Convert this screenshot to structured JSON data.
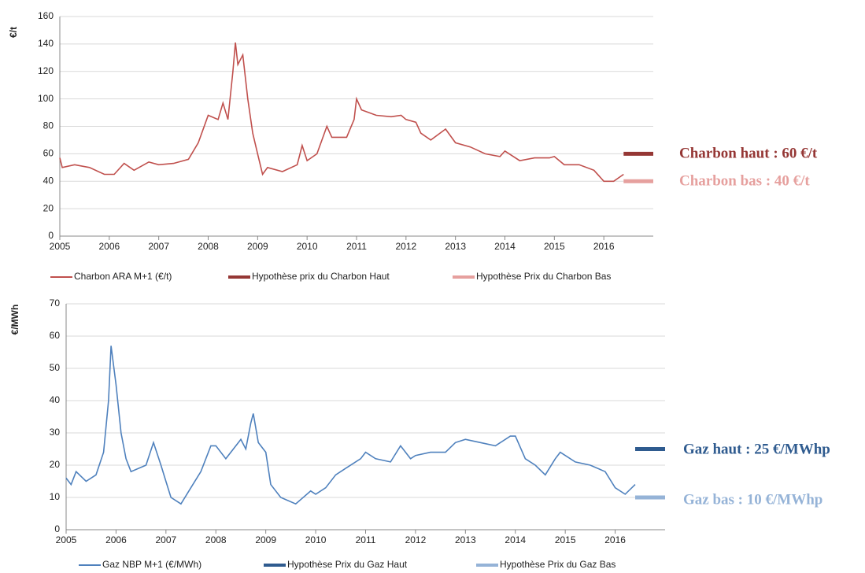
{
  "chart_data": [
    {
      "type": "line",
      "ylabel": "€/t",
      "xlim": [
        2005,
        2017
      ],
      "xticks": [
        2005,
        2006,
        2007,
        2008,
        2009,
        2010,
        2011,
        2012,
        2013,
        2014,
        2015,
        2016
      ],
      "ylim": [
        0,
        160
      ],
      "yticks": [
        0,
        20,
        40,
        60,
        80,
        100,
        120,
        140,
        160
      ],
      "grid": true,
      "series": [
        {
          "name": "Charbon ARA M+1 (€/t)",
          "color": "#c0504d",
          "x": [
            2005.0,
            2005.05,
            2005.3,
            2005.6,
            2005.9,
            2006.1,
            2006.3,
            2006.5,
            2006.8,
            2007.0,
            2007.3,
            2007.6,
            2007.8,
            2008.0,
            2008.2,
            2008.3,
            2008.4,
            2008.5,
            2008.55,
            2008.6,
            2008.7,
            2008.8,
            2008.9,
            2009.0,
            2009.1,
            2009.2,
            2009.5,
            2009.8,
            2009.9,
            2010.0,
            2010.2,
            2010.4,
            2010.5,
            2010.8,
            2010.95,
            2011.0,
            2011.1,
            2011.4,
            2011.7,
            2011.9,
            2012.0,
            2012.2,
            2012.3,
            2012.5,
            2012.8,
            2013.0,
            2013.3,
            2013.6,
            2013.9,
            2014.0,
            2014.3,
            2014.6,
            2014.9,
            2015.0,
            2015.2,
            2015.5,
            2015.8,
            2016.0,
            2016.2,
            2016.4
          ],
          "values": [
            57,
            50,
            52,
            50,
            45,
            45,
            53,
            48,
            54,
            52,
            53,
            56,
            68,
            88,
            85,
            97,
            85,
            120,
            141,
            125,
            132,
            100,
            75,
            60,
            45,
            50,
            47,
            52,
            66,
            55,
            60,
            80,
            72,
            72,
            85,
            100,
            92,
            88,
            87,
            88,
            85,
            83,
            75,
            70,
            78,
            68,
            65,
            60,
            58,
            62,
            55,
            57,
            57,
            58,
            52,
            52,
            48,
            40,
            40,
            45
          ]
        },
        {
          "name": "Hypothèse prix du Charbon Haut",
          "color": "#953735",
          "x": [
            2016.4,
            2017
          ],
          "values": [
            60,
            60
          ]
        },
        {
          "name": "Hypothèse Prix du Charbon Bas",
          "color": "#e6a09e",
          "x": [
            2016.4,
            2017
          ],
          "values": [
            40,
            40
          ]
        }
      ],
      "annotations": [
        {
          "text": "Charbon haut : 60 €/t",
          "color": "#953735"
        },
        {
          "text": "Charbon bas : 40 €/t",
          "color": "#e6a09e"
        }
      ]
    },
    {
      "type": "line",
      "ylabel": "€/MWh",
      "xlim": [
        2005,
        2017
      ],
      "xticks": [
        2005,
        2006,
        2007,
        2008,
        2009,
        2010,
        2011,
        2012,
        2013,
        2014,
        2015,
        2016
      ],
      "ylim": [
        0,
        70
      ],
      "yticks": [
        0,
        10,
        20,
        30,
        40,
        50,
        60,
        70
      ],
      "grid": true,
      "series": [
        {
          "name": "Gaz NBP M+1 (€/MWh)",
          "color": "#4f81bd",
          "x": [
            2005.0,
            2005.1,
            2005.2,
            2005.4,
            2005.6,
            2005.75,
            2005.85,
            2005.9,
            2006.0,
            2006.1,
            2006.2,
            2006.3,
            2006.6,
            2006.75,
            2006.9,
            2007.0,
            2007.1,
            2007.3,
            2007.5,
            2007.7,
            2007.9,
            2008.0,
            2008.2,
            2008.5,
            2008.6,
            2008.7,
            2008.75,
            2008.85,
            2009.0,
            2009.1,
            2009.3,
            2009.6,
            2009.9,
            2010.0,
            2010.2,
            2010.4,
            2010.6,
            2010.9,
            2011.0,
            2011.2,
            2011.5,
            2011.7,
            2011.9,
            2012.0,
            2012.3,
            2012.6,
            2012.8,
            2013.0,
            2013.3,
            2013.6,
            2013.9,
            2014.0,
            2014.2,
            2014.4,
            2014.6,
            2014.8,
            2014.9,
            2015.0,
            2015.2,
            2015.5,
            2015.8,
            2016.0,
            2016.2,
            2016.4
          ],
          "values": [
            16,
            14,
            18,
            15,
            17,
            24,
            40,
            57,
            45,
            30,
            22,
            18,
            20,
            27,
            20,
            15,
            10,
            8,
            13,
            18,
            26,
            26,
            22,
            28,
            25,
            33,
            36,
            27,
            24,
            14,
            10,
            8,
            12,
            11,
            13,
            17,
            19,
            22,
            24,
            22,
            21,
            26,
            22,
            23,
            24,
            24,
            27,
            28,
            27,
            26,
            29,
            29,
            22,
            20,
            17,
            22,
            24,
            23,
            21,
            20,
            18,
            13,
            11,
            14
          ]
        },
        {
          "name": "Hypothèse Prix du Gaz Haut",
          "color": "#2f5b8f",
          "x": [
            2016.4,
            2017
          ],
          "values": [
            25,
            25
          ]
        },
        {
          "name": "Hypothèse Prix du Gaz Bas",
          "color": "#95b3d7",
          "x": [
            2016.4,
            2017
          ],
          "values": [
            10,
            10
          ]
        }
      ],
      "annotations": [
        {
          "text": "Gaz haut : 25 €/MWhp",
          "color": "#2f5b8f"
        },
        {
          "text": "Gaz bas : 10 €/MWhp",
          "color": "#95b3d7"
        }
      ]
    }
  ]
}
